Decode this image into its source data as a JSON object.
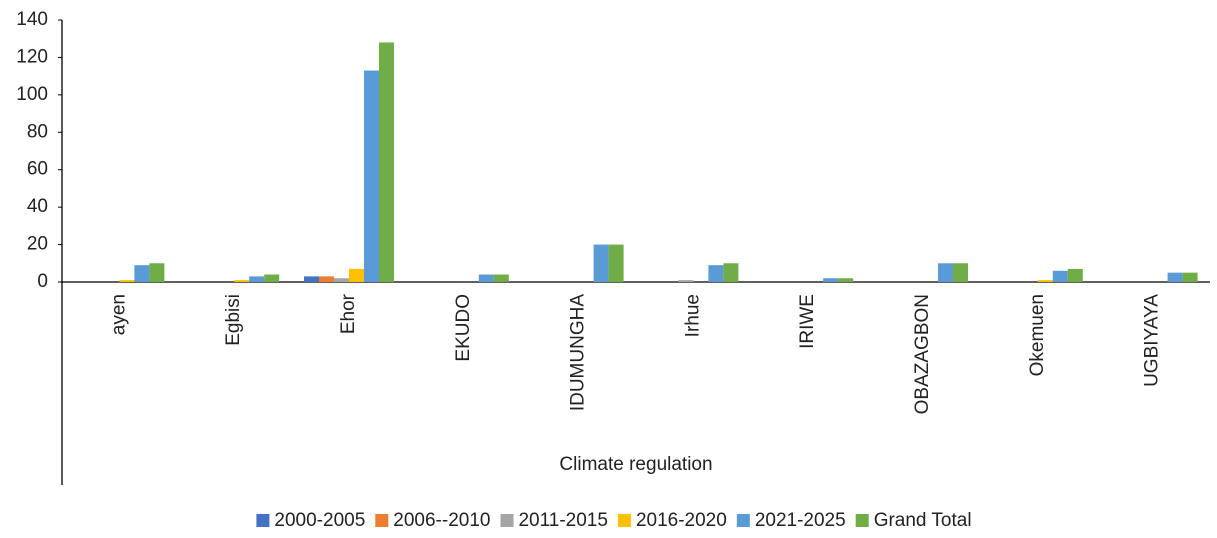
{
  "chart_data": {
    "type": "bar",
    "x_label": "Climate regulation",
    "categories": [
      "ayen",
      "Egbisi",
      "Ehor",
      "EKUDO",
      "IDUMUNGHA",
      "Irhue",
      "IRIWE",
      "OBAZAGBON",
      "Okemuen",
      "UGBIYAYA"
    ],
    "series": [
      {
        "name": "2000-2005",
        "color": "#4472c4",
        "values": [
          0,
          0,
          3,
          0,
          0,
          0,
          0,
          0,
          0,
          0
        ]
      },
      {
        "name": "2006--2010",
        "color": "#ed7d31",
        "values": [
          0,
          0,
          3,
          0,
          0,
          0,
          0,
          0,
          0,
          0
        ]
      },
      {
        "name": "2011-2015",
        "color": "#a5a5a5",
        "values": [
          0,
          0,
          2,
          0,
          0,
          1,
          0,
          0,
          0,
          0
        ]
      },
      {
        "name": "2016-2020",
        "color": "#ffc000",
        "values": [
          1,
          1,
          7,
          0,
          0,
          0,
          0,
          0,
          1,
          0
        ]
      },
      {
        "name": "2021-2025",
        "color": "#5b9bd5",
        "values": [
          9,
          3,
          113,
          4,
          20,
          9,
          2,
          10,
          6,
          5
        ]
      },
      {
        "name": "Grand Total",
        "color": "#70ad47",
        "values": [
          10,
          4,
          128,
          4,
          20,
          10,
          2,
          10,
          7,
          5
        ]
      }
    ],
    "ylim": [
      0,
      140
    ],
    "yticks": [
      0,
      20,
      40,
      60,
      80,
      100,
      120,
      140
    ],
    "grid": false,
    "legend": "bottom"
  }
}
